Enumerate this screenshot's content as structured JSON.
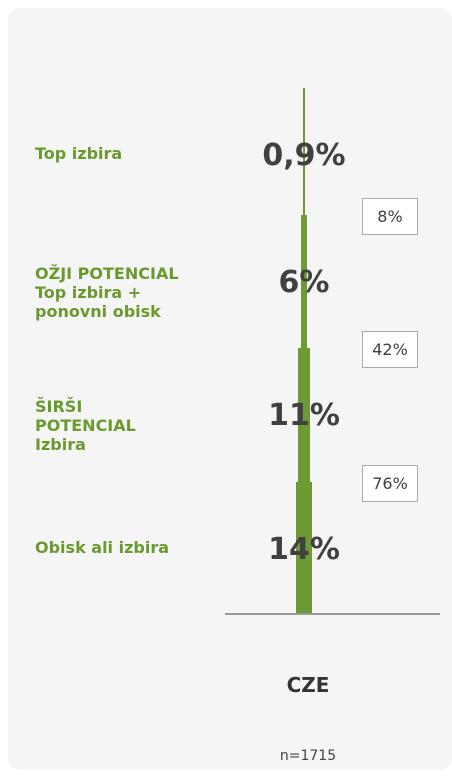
{
  "chart_data": {
    "type": "funnel",
    "categories": [
      "Top izbira",
      "OŽJI POTENCIAL\nTop izbira +\nponovni obisk",
      "ŠIRŠI\nPOTENCIAL\nIzbira",
      "Obisk ali izbira"
    ],
    "values": [
      0.9,
      6,
      11,
      14
    ],
    "value_labels": [
      "0,9%",
      "6%",
      "11%",
      "14%"
    ],
    "conversions": {
      "values": [
        8,
        42,
        76
      ],
      "value_labels": [
        "8%",
        "42%",
        "76%"
      ]
    },
    "x_label": "CZE",
    "note": "n=1715",
    "color": "#6e9a35",
    "label_color": "#6a9a2e"
  }
}
